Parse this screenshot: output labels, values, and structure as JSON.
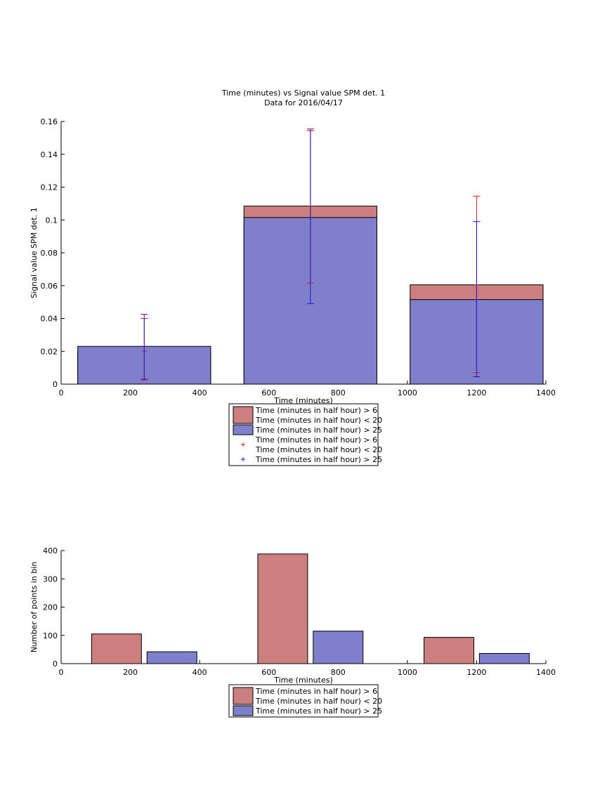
{
  "chart_data": [
    {
      "type": "bar",
      "title": "Time (minutes) vs Signal value SPM det. 1",
      "subtitle": "Data for 2016/04/17",
      "xlabel": "Time (minutes)",
      "ylabel": "Signal value SPM det. 1",
      "xlim": [
        0,
        1400
      ],
      "ylim": [
        0,
        0.16
      ],
      "xticks": [
        "0",
        "200",
        "400",
        "600",
        "800",
        "1000",
        "1200",
        "1400"
      ],
      "yticks": [
        "0",
        "0.02",
        "0.04",
        "0.06",
        "0.08",
        "0.1",
        "0.12",
        "0.14",
        "0.16"
      ],
      "x": [
        240,
        720,
        1200
      ],
      "bar_width": 384,
      "series": [
        {
          "name": "Time (minutes in half hour) > 6\nTime (minutes in half hour) < 20",
          "color": "#cc7f7f",
          "values": [
            0.02,
            0.1085,
            0.0605
          ],
          "err_low": [
            0.0025,
            0.0615,
            0.007
          ],
          "err_high": [
            0.04,
            0.1555,
            0.1145
          ],
          "err_color": "#e6191a"
        },
        {
          "name": "Time (minutes in half hour) > 25",
          "color": "#7f7fcc",
          "values": [
            0.023,
            0.1015,
            0.0515
          ],
          "err_low": [
            0.003,
            0.049,
            0.0045
          ],
          "err_high": [
            0.0425,
            0.1545,
            0.099
          ],
          "err_color": "#1a1acc"
        }
      ],
      "legend": [
        {
          "type": "bar",
          "color": "#cc7f7f",
          "lines": [
            "Time (minutes in half hour) > 6",
            "Time (minutes in half hour) < 20"
          ]
        },
        {
          "type": "bar",
          "color": "#7f7fcc",
          "lines": [
            "Time (minutes in half hour) > 25"
          ]
        },
        {
          "type": "marker",
          "color": "#e6191a",
          "lines": [
            "Time (minutes in half hour) > 6",
            "Time (minutes in half hour) < 20"
          ]
        },
        {
          "type": "marker",
          "color": "#1a1acc",
          "lines": [
            "Time (minutes in half hour) > 25"
          ]
        }
      ],
      "legend_position": "below-center"
    },
    {
      "type": "bar",
      "title": "",
      "xlabel": "Time (minutes)",
      "ylabel": "Number of points in bin",
      "xlim": [
        0,
        1400
      ],
      "ylim": [
        0,
        400
      ],
      "xticks": [
        "0",
        "200",
        "400",
        "600",
        "800",
        "1000",
        "1200",
        "1400"
      ],
      "yticks": [
        "0",
        "100",
        "200",
        "300",
        "400"
      ],
      "bar_width": 144,
      "series": [
        {
          "name": "Time (minutes in half hour) > 6\nTime (minutes in half hour) < 20",
          "color": "#cc7f7f",
          "x": [
            160,
            640,
            1120
          ],
          "values": [
            105,
            388,
            93
          ]
        },
        {
          "name": "Time (minutes in half hour) > 25",
          "color": "#7f7fcc",
          "x": [
            320,
            800,
            1280
          ],
          "values": [
            42,
            115,
            36
          ]
        }
      ],
      "legend": [
        {
          "type": "bar",
          "color": "#cc7f7f",
          "lines": [
            "Time (minutes in half hour) > 6",
            "Time (minutes in half hour) < 20"
          ]
        },
        {
          "type": "bar",
          "color": "#7f7fcc",
          "lines": [
            "Time (minutes in half hour) > 25"
          ]
        }
      ],
      "legend_position": "below-center"
    }
  ]
}
